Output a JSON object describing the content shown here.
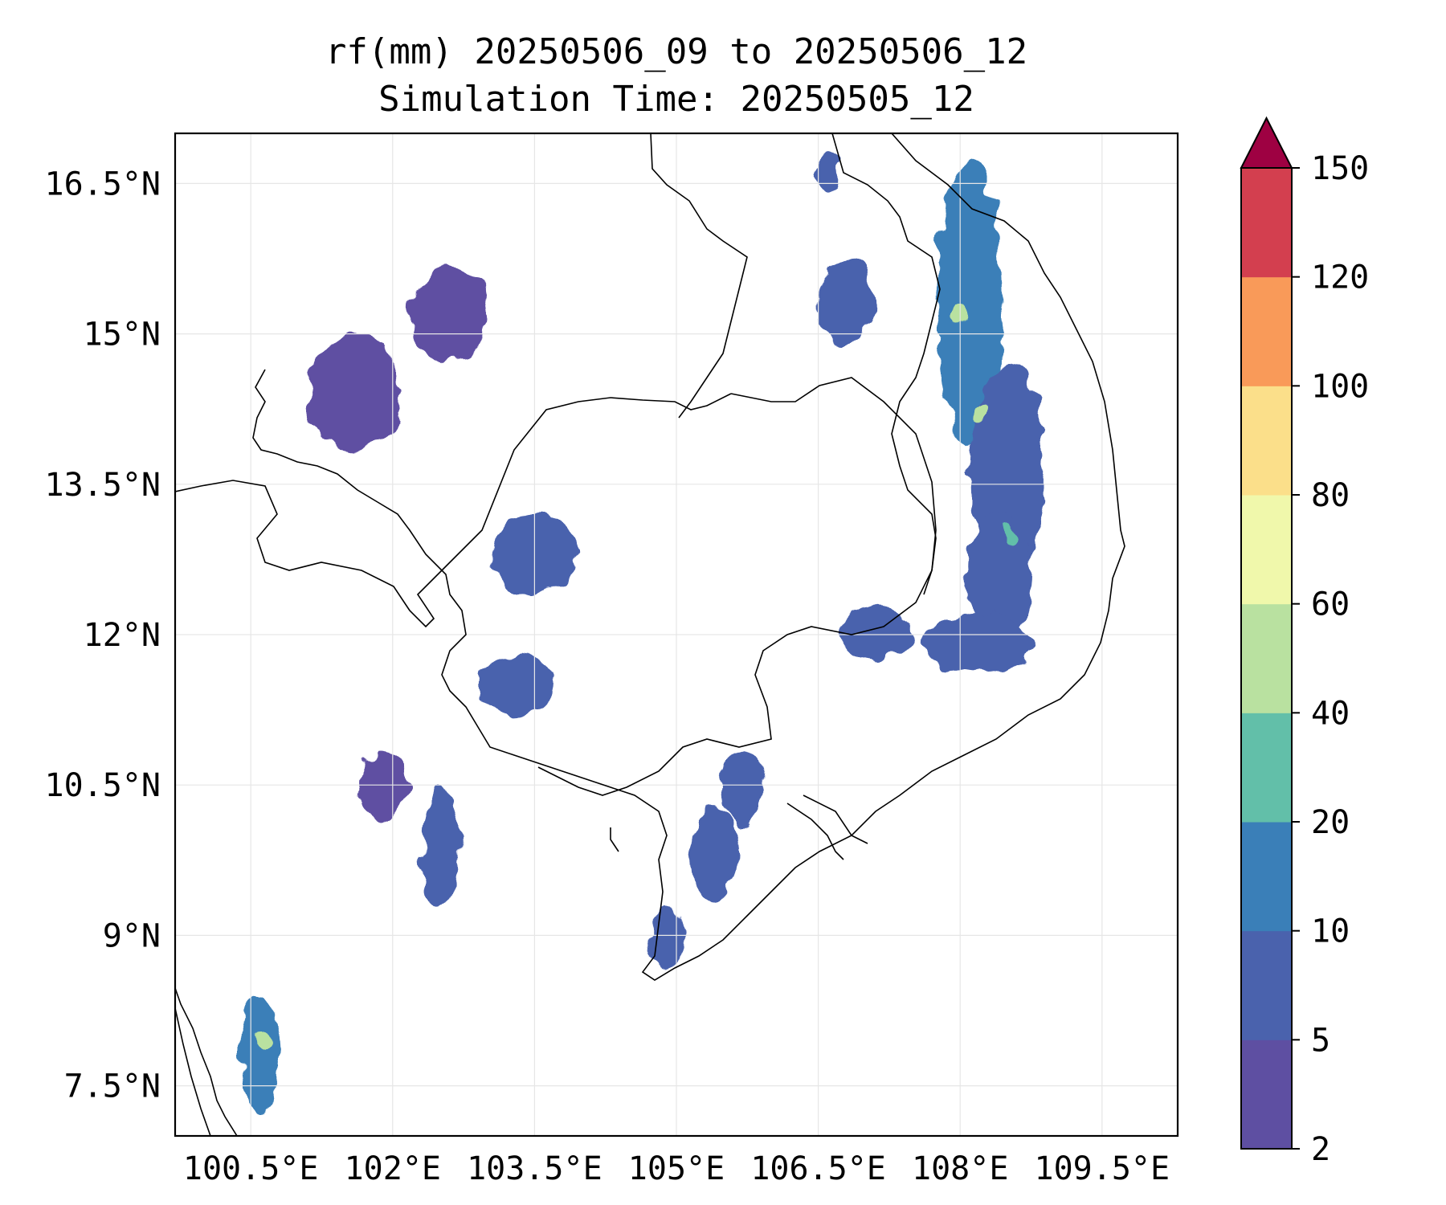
{
  "title": {
    "line1": "rf(mm) 20250506_09 to 20250506_12",
    "line2": "Simulation Time: 20250505_12"
  },
  "map": {
    "lon_range": [
      99.7,
      110.3
    ],
    "lat_range": [
      7.0,
      17.0
    ],
    "lon_ticks": [
      {
        "value": 100.5,
        "label": "100.5°E"
      },
      {
        "value": 102.0,
        "label": "102°E"
      },
      {
        "value": 103.5,
        "label": "103.5°E"
      },
      {
        "value": 105.0,
        "label": "105°E"
      },
      {
        "value": 106.5,
        "label": "106.5°E"
      },
      {
        "value": 108.0,
        "label": "108°E"
      },
      {
        "value": 109.5,
        "label": "109.5°E"
      }
    ],
    "lat_ticks": [
      {
        "value": 16.5,
        "label": "16.5°N"
      },
      {
        "value": 15.0,
        "label": "15°N"
      },
      {
        "value": 13.5,
        "label": "13.5°N"
      },
      {
        "value": 12.0,
        "label": "12°N"
      },
      {
        "value": 10.5,
        "label": "10.5°N"
      },
      {
        "value": 9.0,
        "label": "9°N"
      },
      {
        "value": 7.5,
        "label": "7.5°N"
      }
    ],
    "gridlines": true
  },
  "colorbar": {
    "levels": [
      "2",
      "5",
      "10",
      "20",
      "40",
      "60",
      "80",
      "100",
      "120",
      "150"
    ],
    "colors": [
      "#5e4fa2",
      "#4a62ad",
      "#3a7fb8",
      "#62bfa9",
      "#b9e1a0",
      "#f0f8ab",
      "#fbdf8a",
      "#f99a59",
      "#d33f4f"
    ],
    "extend_color": "#9e0142",
    "extend": "max"
  },
  "chart_data": {
    "type": "heatmap",
    "title": "rf(mm) 20250506_09 to 20250506_12\nSimulation Time: 20250505_12",
    "xlabel": "",
    "ylabel": "",
    "xlim": [
      99.7,
      110.3
    ],
    "ylim": [
      7.0,
      17.0
    ],
    "units": "mm",
    "rain_cells": [
      {
        "lon": 108.1,
        "lat": 15.3,
        "rx": 0.35,
        "ry": 1.4,
        "level": 2
      },
      {
        "lon": 108.5,
        "lat": 13.6,
        "rx": 0.4,
        "ry": 1.1,
        "level": 1
      },
      {
        "lon": 108.4,
        "lat": 12.6,
        "rx": 0.35,
        "ry": 0.6,
        "level": 1
      },
      {
        "lon": 108.2,
        "lat": 11.9,
        "rx": 0.6,
        "ry": 0.3,
        "level": 1
      },
      {
        "lon": 107.1,
        "lat": 12.0,
        "rx": 0.4,
        "ry": 0.25,
        "level": 1
      },
      {
        "lon": 106.8,
        "lat": 15.3,
        "rx": 0.3,
        "ry": 0.4,
        "level": 1
      },
      {
        "lon": 106.6,
        "lat": 16.6,
        "rx": 0.15,
        "ry": 0.2,
        "level": 1
      },
      {
        "lon": 105.4,
        "lat": 9.8,
        "rx": 0.25,
        "ry": 0.5,
        "level": 1
      },
      {
        "lon": 105.7,
        "lat": 10.5,
        "rx": 0.2,
        "ry": 0.4,
        "level": 1
      },
      {
        "lon": 104.9,
        "lat": 9.0,
        "rx": 0.2,
        "ry": 0.3,
        "level": 1
      },
      {
        "lon": 103.5,
        "lat": 12.8,
        "rx": 0.45,
        "ry": 0.4,
        "level": 1
      },
      {
        "lon": 103.3,
        "lat": 11.5,
        "rx": 0.4,
        "ry": 0.3,
        "level": 1
      },
      {
        "lon": 102.5,
        "lat": 9.9,
        "rx": 0.2,
        "ry": 0.6,
        "level": 1
      },
      {
        "lon": 101.9,
        "lat": 10.5,
        "rx": 0.25,
        "ry": 0.35,
        "level": 0
      },
      {
        "lon": 101.6,
        "lat": 14.4,
        "rx": 0.5,
        "ry": 0.6,
        "level": 0
      },
      {
        "lon": 102.6,
        "lat": 15.2,
        "rx": 0.4,
        "ry": 0.5,
        "level": 0
      },
      {
        "lon": 100.6,
        "lat": 7.8,
        "rx": 0.2,
        "ry": 0.6,
        "level": 2
      },
      {
        "lon": 108.0,
        "lat": 15.2,
        "rx": 0.08,
        "ry": 0.08,
        "level": 4
      },
      {
        "lon": 108.2,
        "lat": 14.2,
        "rx": 0.08,
        "ry": 0.08,
        "level": 4
      },
      {
        "lon": 108.5,
        "lat": 13.0,
        "rx": 0.08,
        "ry": 0.08,
        "level": 3
      },
      {
        "lon": 100.6,
        "lat": 8.0,
        "rx": 0.08,
        "ry": 0.1,
        "level": 4
      }
    ]
  }
}
